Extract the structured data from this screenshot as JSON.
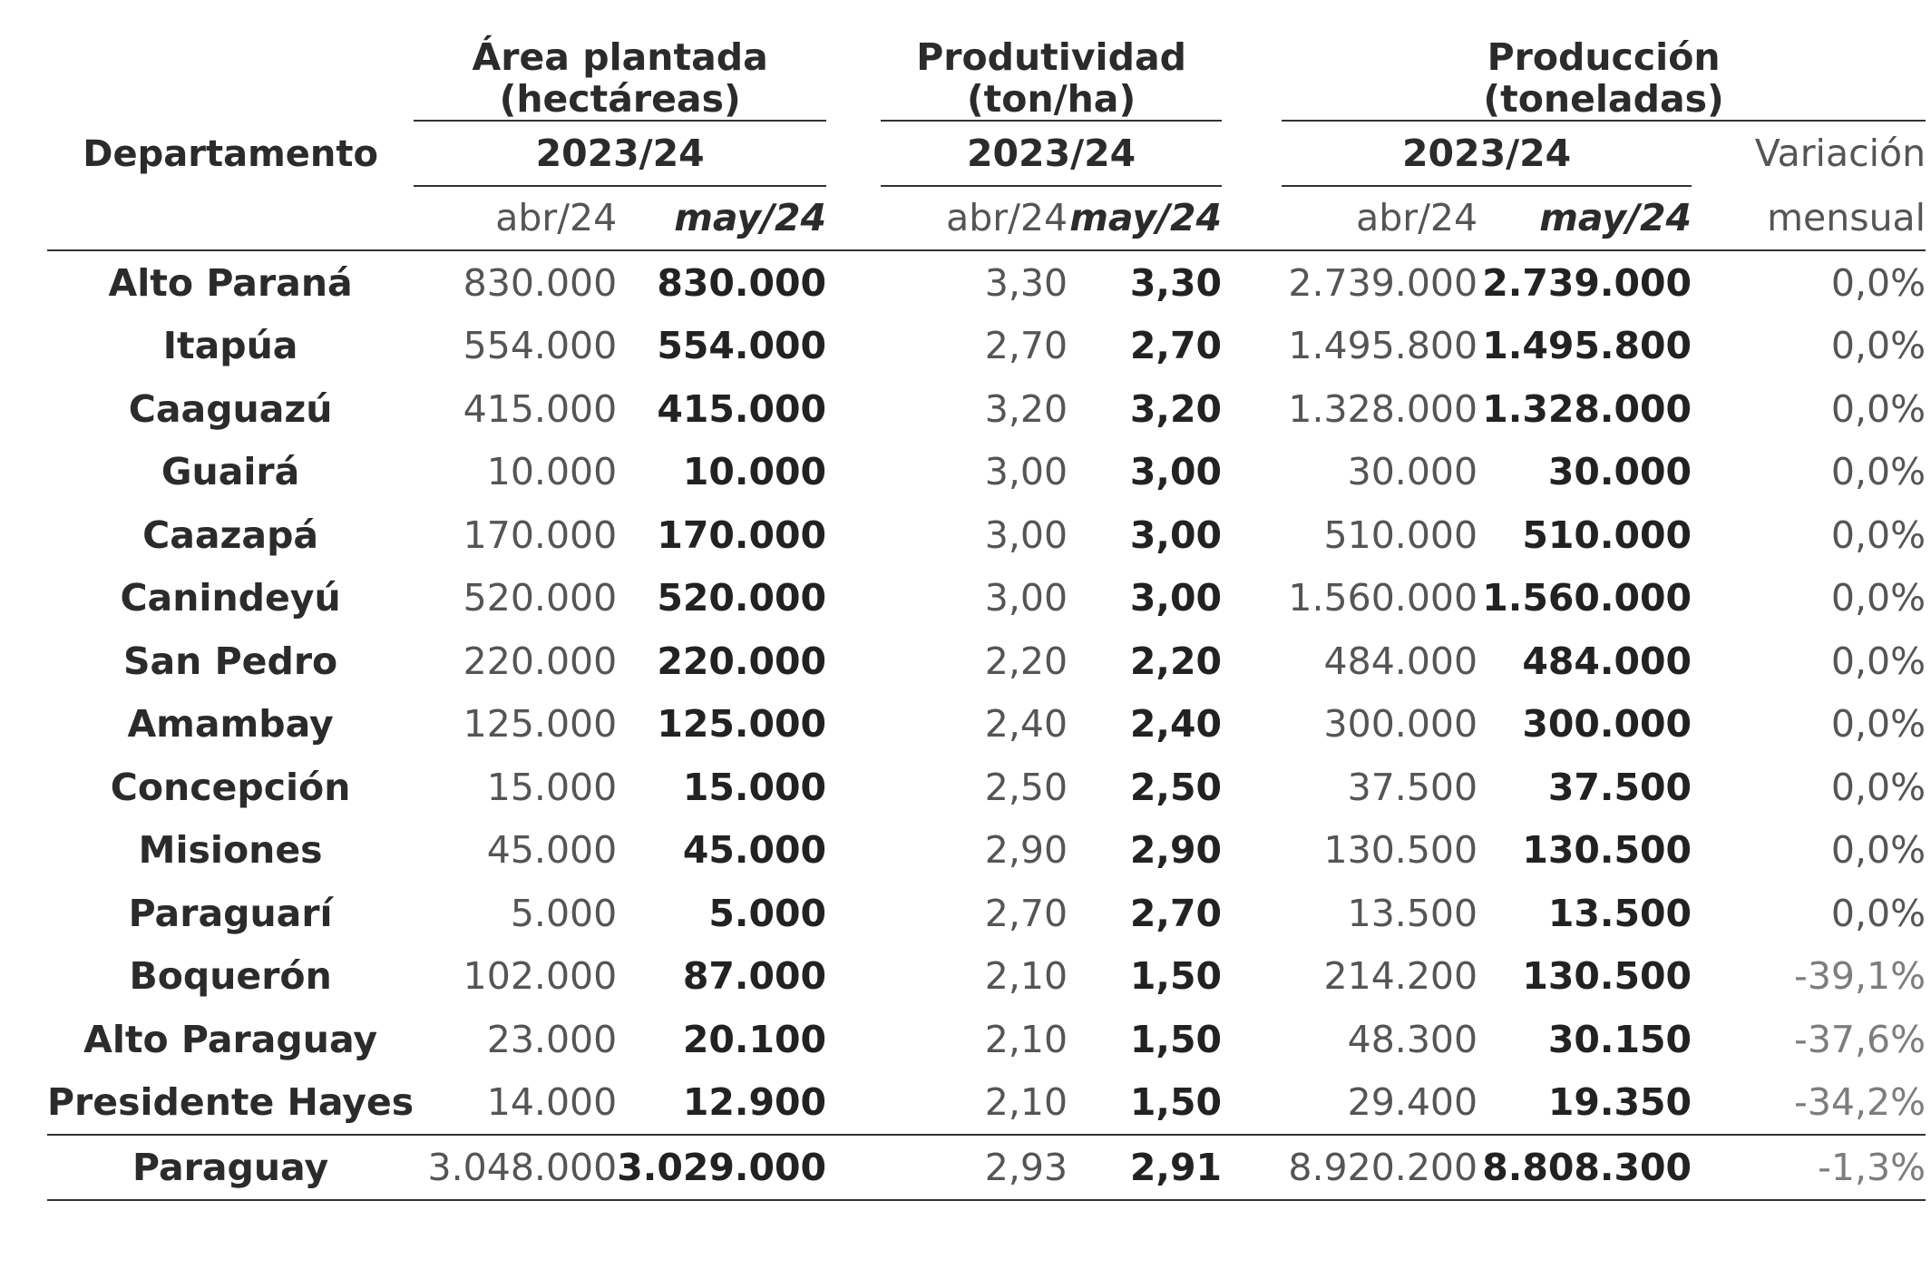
{
  "headers": {
    "departamento": "Departamento",
    "area_line1": "Área plantada",
    "area_line2": "(hectáreas)",
    "prod_line1": "Produtividad",
    "prod_line2": "(ton/ha)",
    "produc_line1": "Producción",
    "produc_line2": "(toneladas)",
    "season": "2023/24",
    "variacion_line1": "Variación",
    "variacion_line2": "mensual",
    "abr": "abr/24",
    "may": "may/24"
  },
  "rows": [
    {
      "dep": "Alto Paraná",
      "area_abr": "830.000",
      "area_may": "830.000",
      "prod_abr": "3,30",
      "prod_may": "3,30",
      "produc_abr": "2.739.000",
      "produc_may": "2.739.000",
      "var": "0,0%"
    },
    {
      "dep": "Itapúa",
      "area_abr": "554.000",
      "area_may": "554.000",
      "prod_abr": "2,70",
      "prod_may": "2,70",
      "produc_abr": "1.495.800",
      "produc_may": "1.495.800",
      "var": "0,0%"
    },
    {
      "dep": "Caaguazú",
      "area_abr": "415.000",
      "area_may": "415.000",
      "prod_abr": "3,20",
      "prod_may": "3,20",
      "produc_abr": "1.328.000",
      "produc_may": "1.328.000",
      "var": "0,0%"
    },
    {
      "dep": "Guairá",
      "area_abr": "10.000",
      "area_may": "10.000",
      "prod_abr": "3,00",
      "prod_may": "3,00",
      "produc_abr": "30.000",
      "produc_may": "30.000",
      "var": "0,0%"
    },
    {
      "dep": "Caazapá",
      "area_abr": "170.000",
      "area_may": "170.000",
      "prod_abr": "3,00",
      "prod_may": "3,00",
      "produc_abr": "510.000",
      "produc_may": "510.000",
      "var": "0,0%"
    },
    {
      "dep": "Canindeyú",
      "area_abr": "520.000",
      "area_may": "520.000",
      "prod_abr": "3,00",
      "prod_may": "3,00",
      "produc_abr": "1.560.000",
      "produc_may": "1.560.000",
      "var": "0,0%"
    },
    {
      "dep": "San Pedro",
      "area_abr": "220.000",
      "area_may": "220.000",
      "prod_abr": "2,20",
      "prod_may": "2,20",
      "produc_abr": "484.000",
      "produc_may": "484.000",
      "var": "0,0%"
    },
    {
      "dep": "Amambay",
      "area_abr": "125.000",
      "area_may": "125.000",
      "prod_abr": "2,40",
      "prod_may": "2,40",
      "produc_abr": "300.000",
      "produc_may": "300.000",
      "var": "0,0%"
    },
    {
      "dep": "Concepción",
      "area_abr": "15.000",
      "area_may": "15.000",
      "prod_abr": "2,50",
      "prod_may": "2,50",
      "produc_abr": "37.500",
      "produc_may": "37.500",
      "var": "0,0%"
    },
    {
      "dep": "Misiones",
      "area_abr": "45.000",
      "area_may": "45.000",
      "prod_abr": "2,90",
      "prod_may": "2,90",
      "produc_abr": "130.500",
      "produc_may": "130.500",
      "var": "0,0%"
    },
    {
      "dep": "Paraguarí",
      "area_abr": "5.000",
      "area_may": "5.000",
      "prod_abr": "2,70",
      "prod_may": "2,70",
      "produc_abr": "13.500",
      "produc_may": "13.500",
      "var": "0,0%"
    },
    {
      "dep": "Boquerón",
      "area_abr": "102.000",
      "area_may": "87.000",
      "prod_abr": "2,10",
      "prod_may": "1,50",
      "produc_abr": "214.200",
      "produc_may": "130.500",
      "var": "-39,1%"
    },
    {
      "dep": "Alto Paraguay",
      "area_abr": "23.000",
      "area_may": "20.100",
      "prod_abr": "2,10",
      "prod_may": "1,50",
      "produc_abr": "48.300",
      "produc_may": "30.150",
      "var": "-37,6%"
    },
    {
      "dep": "Presidente Hayes",
      "area_abr": "14.000",
      "area_may": "12.900",
      "prod_abr": "2,10",
      "prod_may": "1,50",
      "produc_abr": "29.400",
      "produc_may": "19.350",
      "var": "-34,2%"
    }
  ],
  "total": {
    "dep": "Paraguay",
    "area_abr": "3.048.000",
    "area_may": "3.029.000",
    "prod_abr": "2,93",
    "prod_may": "2,91",
    "produc_abr": "8.920.200",
    "produc_may": "8.808.300",
    "var": "-1,3%"
  }
}
